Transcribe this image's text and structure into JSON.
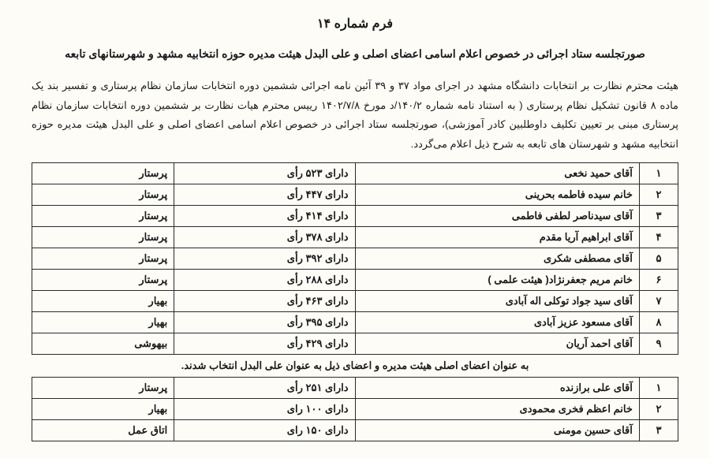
{
  "title": "فرم شماره ۱۴",
  "subtitle": "صورتجلسه ستاد اجرائی در خصوص اعلام اسامی اعضای اصلی و علی البدل هیئت مدیره حوزه انتخابیه مشهد و شهرستانهای تابعه",
  "paragraph": "هیئت محترم نظارت بر انتخابات دانشگاه مشهد در اجرای مواد ۳۷ و ۳۹ آئین نامه اجرائی ششمین دوره انتخابات سازمان نظام پرستاری و تفسیر بند یک ماده ۸ قانون تشکیل نظام پرستاری ( به استناد نامه شماره ۱۴۰/۲/د مورخ ۱۴۰۲/۷/۸ رییس محترم هیات نظارت بر ششمین دوره انتخابات سازمان نظام پرستاری مبنی بر تعیین تکلیف داوطلبین کادر آموزشی)، صورتجلسه ستاد اجرائی در خصوص اعلام اسامی اعضای اصلی و علی البدل هیئت مدیره حوزه انتخابیه مشهد و شهرستان های تابعه به شرح ذیل اعلام می‌گردد.",
  "main": [
    {
      "n": "۱",
      "name": "آقای حمید نخعی",
      "votes": "دارای  ۵۲۳ رأی",
      "role": "پرستار"
    },
    {
      "n": "۲",
      "name": "خانم سیده فاطمه  بحرینی",
      "votes": "دارای  ۴۴۷ رأی",
      "role": "پرستار"
    },
    {
      "n": "۳",
      "name": "آقای سیدناصر لطفی فاطمی",
      "votes": "دارای  ۴۱۴ رأی",
      "role": "پرستار"
    },
    {
      "n": "۴",
      "name": "آقای ابراهیم آریا مقدم",
      "votes": "دارای  ۳۷۸ رأی",
      "role": "پرستار"
    },
    {
      "n": "۵",
      "name": "آقای مصطفی شکری",
      "votes": "دارای  ۳۹۲ رأی",
      "role": "پرستار"
    },
    {
      "n": "۶",
      "name": "خانم مریم  جعفرنژاد( هیئت علمی )",
      "votes": "دارای  ۲۸۸ رأی",
      "role": "پرستار"
    },
    {
      "n": "۷",
      "name": "آقای سید جواد توکلی اله آبادی",
      "votes": "دارای  ۴۶۳ رأی",
      "role": "بهیار"
    },
    {
      "n": "۸",
      "name": "آقای مسعود عزیز آبادی",
      "votes": "دارای  ۳۹۵ رأی",
      "role": "بهیار"
    },
    {
      "n": "۹",
      "name": "آقای احمد آریان",
      "votes": "دارای  ۴۲۹ رأی",
      "role": "بیهوشی"
    }
  ],
  "between": "به عنوان اعضای اصلی هیئت مدیره و اعضای ذیل به عنوان علی البدل انتخاب شدند.",
  "alt": [
    {
      "n": "۱",
      "name": "آقای علی برازنده",
      "votes": "دارای  ۲۵۱ رأی",
      "role": "پرستار"
    },
    {
      "n": "۲",
      "name": "خانم اعظم فخری محمودی",
      "votes": "دارای ۱۰۰ رای",
      "role": "بهیار"
    },
    {
      "n": "۳",
      "name": "آقای حسین مومنی",
      "votes": "دارای ۱۵۰ رای",
      "role": "اتاق عمل"
    }
  ]
}
